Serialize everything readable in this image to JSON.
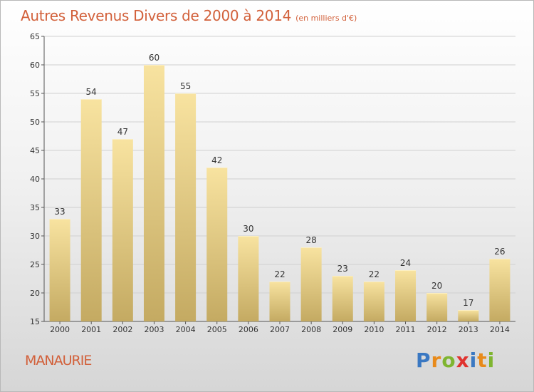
{
  "header": {
    "title": "Autres Revenus Divers de 2000 à 2014",
    "subtitle": "(en milliers d'€)"
  },
  "footer": {
    "commune": "MANAURIE",
    "logo_text": "Proxiti",
    "logo_letters": [
      {
        "ch": "P",
        "color": "#3a78c2"
      },
      {
        "ch": "r",
        "color": "#e88a1a"
      },
      {
        "ch": "o",
        "color": "#7fb530"
      },
      {
        "ch": "x",
        "color": "#e0332f"
      },
      {
        "ch": "i",
        "color": "#3a78c2"
      },
      {
        "ch": "t",
        "color": "#e88a1a"
      },
      {
        "ch": "i",
        "color": "#7fb530"
      }
    ]
  },
  "colors": {
    "title": "#d2603a",
    "bar_top": "#f8e3a0",
    "bar_bottom": "#c4aa62",
    "grid": "#d0d0d0"
  },
  "chart_data": {
    "type": "bar",
    "title": "Autres Revenus Divers de 2000 à 2014",
    "subtitle": "(en milliers d'€)",
    "xlabel": "",
    "ylabel": "",
    "categories": [
      "2000",
      "2001",
      "2002",
      "2003",
      "2004",
      "2005",
      "2006",
      "2007",
      "2008",
      "2009",
      "2010",
      "2011",
      "2012",
      "2013",
      "2014"
    ],
    "values": [
      33,
      54,
      47,
      60,
      55,
      42,
      30,
      22,
      28,
      23,
      22,
      24,
      20,
      17,
      26
    ],
    "ylim": [
      15,
      65
    ],
    "yticks": [
      15,
      20,
      25,
      30,
      35,
      40,
      45,
      50,
      55,
      60,
      65
    ],
    "grid": true,
    "data_labels": true
  }
}
